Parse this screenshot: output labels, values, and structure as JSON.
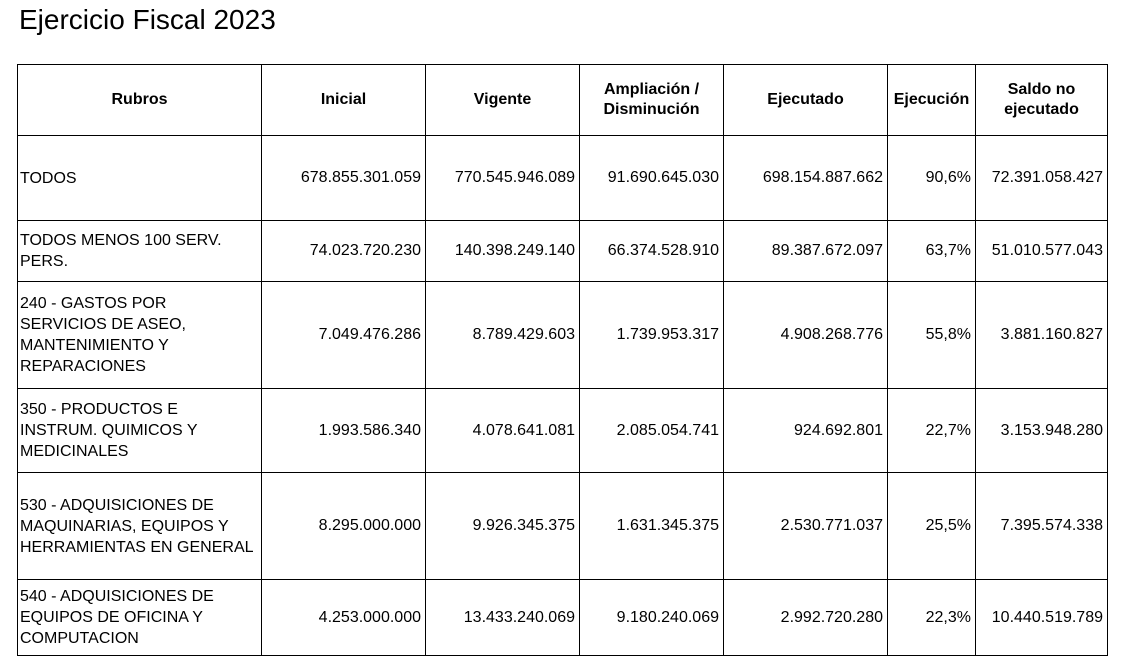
{
  "title": "Ejercicio Fiscal 2023",
  "table": {
    "headers": {
      "rubros": "Rubros",
      "inicial": "Inicial",
      "vigente": "Vigente",
      "ampliacion": "Ampliación / Disminución",
      "ejecutado": "Ejecutado",
      "ejecucion": "Ejecución",
      "saldo": "Saldo no ejecutado"
    },
    "rows": [
      {
        "rubro": "TODOS",
        "inicial": "678.855.301.059",
        "vigente": "770.545.946.089",
        "ampliacion": "91.690.645.030",
        "ejecutado": "698.154.887.662",
        "ejecucion": "90,6%",
        "saldo": "72.391.058.427"
      },
      {
        "rubro": "TODOS MENOS 100 SERV. PERS.",
        "inicial": "74.023.720.230",
        "vigente": "140.398.249.140",
        "ampliacion": "66.374.528.910",
        "ejecutado": "89.387.672.097",
        "ejecucion": "63,7%",
        "saldo": "51.010.577.043"
      },
      {
        "rubro": "240 - GASTOS POR SERVICIOS DE ASEO, MANTENIMIENTO Y REPARACIONES",
        "inicial": "7.049.476.286",
        "vigente": "8.789.429.603",
        "ampliacion": "1.739.953.317",
        "ejecutado": "4.908.268.776",
        "ejecucion": "55,8%",
        "saldo": "3.881.160.827"
      },
      {
        "rubro": "350 - PRODUCTOS E INSTRUM. QUIMICOS Y MEDICINALES",
        "inicial": "1.993.586.340",
        "vigente": "4.078.641.081",
        "ampliacion": "2.085.054.741",
        "ejecutado": "924.692.801",
        "ejecucion": "22,7%",
        "saldo": "3.153.948.280"
      },
      {
        "rubro": "530 - ADQUISICIONES DE MAQUINARIAS, EQUIPOS Y HERRAMIENTAS EN GENERAL",
        "inicial": "8.295.000.000",
        "vigente": "9.926.345.375",
        "ampliacion": "1.631.345.375",
        "ejecutado": "2.530.771.037",
        "ejecucion": "25,5%",
        "saldo": "7.395.574.338"
      },
      {
        "rubro": "540 - ADQUISICIONES DE EQUIPOS DE OFICINA Y COMPUTACION",
        "inicial": "4.253.000.000",
        "vigente": "13.433.240.069",
        "ampliacion": "9.180.240.069",
        "ejecutado": "2.992.720.280",
        "ejecucion": "22,3%",
        "saldo": "10.440.519.789"
      }
    ]
  }
}
